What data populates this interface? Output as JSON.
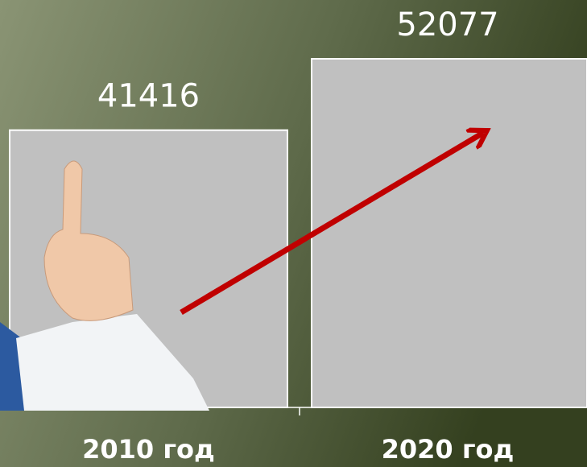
{
  "chart_data": {
    "type": "bar",
    "categories": [
      "2010 год",
      "2020 год"
    ],
    "values": [
      41416,
      52077
    ],
    "color": "#c0c0c0"
  }
}
